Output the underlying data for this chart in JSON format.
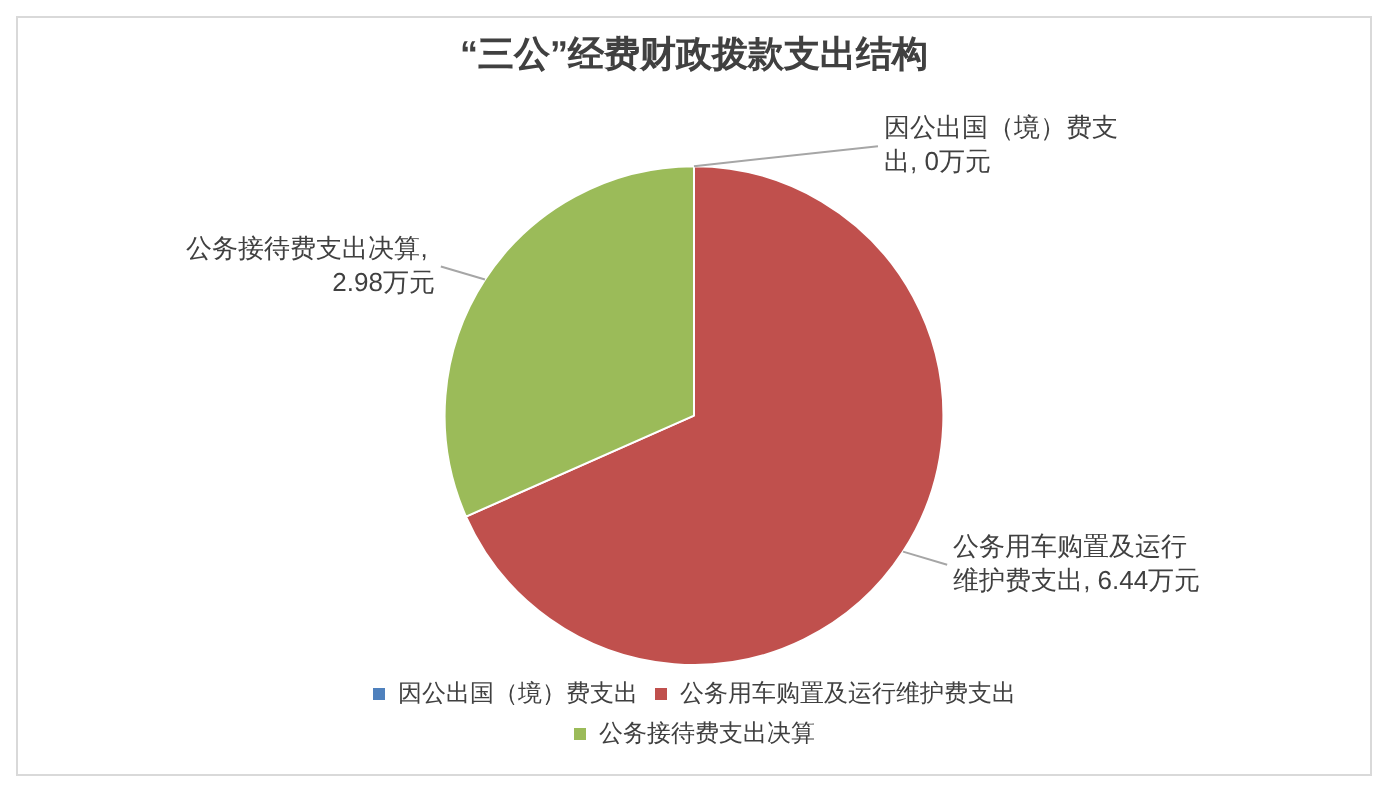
{
  "chart_data": {
    "type": "pie",
    "title": "“三公”经费财政拨款支出结构",
    "categories": [
      "因公出国（境）费支出",
      "公务用车购置及运行维护费支出",
      "公务接待费支出决算"
    ],
    "values": [
      0,
      6.44,
      2.98
    ],
    "colors": [
      "#4f81bd",
      "#c0504d",
      "#9bbb59"
    ],
    "value_labels": [
      "因公出国（境）费支出, 0万元",
      "公务用车购置及运行维护费支出, 6.44万元",
      "公务接待费支出决算, 2.98万元"
    ],
    "legend": "bottom"
  }
}
